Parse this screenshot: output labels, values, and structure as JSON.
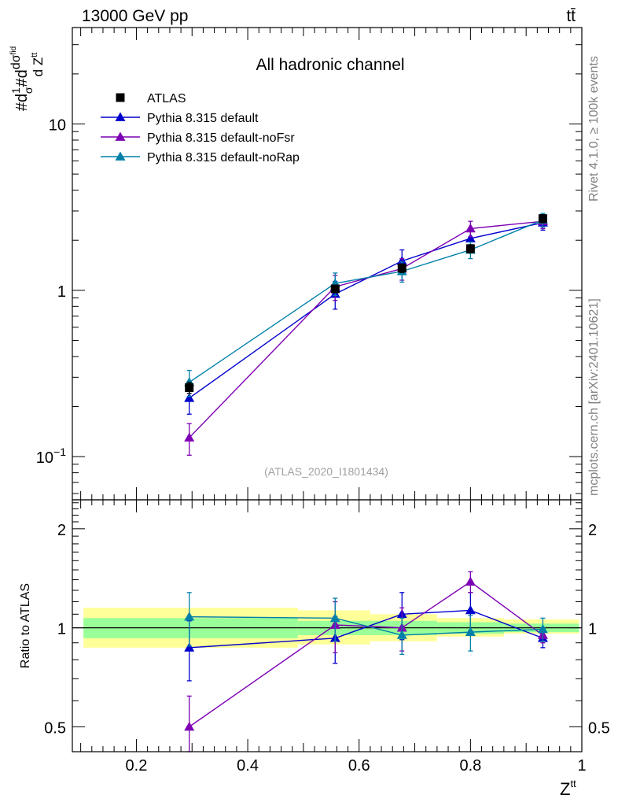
{
  "header": {
    "left": "13000 GeV pp",
    "right": "tt̄"
  },
  "side_text": {
    "rivet": "Rivet 4.1.0, ≥ 100k events",
    "mcplots": "mcplots.cern.ch [arXiv:2401.10621]"
  },
  "colors": {
    "atlas": "#000000",
    "default": "#0000cc",
    "noFsr": "#7d00b4",
    "noRap": "#0080a8",
    "band_inner": "#99ff99",
    "band_outer": "#ffff99"
  },
  "chart_data": [
    {
      "type": "scatter",
      "title": "All hadronic channel",
      "analysis": "(ATLAS_2020_I1801434)",
      "ylabel_parts": {
        "a": "#d",
        "b": "1",
        "c": "σ",
        "d": "#d",
        "e": "dσ",
        "f": "fid",
        "g": "d Z",
        "h": "tt"
      },
      "yscale": "log",
      "ylim": [
        0.055,
        38
      ],
      "xlim": [
        0.085,
        1.0
      ],
      "ytick_labels": [
        {
          "v": 0.1,
          "base": "10",
          "exp": "−1"
        },
        {
          "v": 1,
          "base": "1",
          "exp": ""
        },
        {
          "v": 10,
          "base": "10",
          "exp": ""
        }
      ],
      "legend_position": "top-left",
      "series": [
        {
          "name": "ATLAS",
          "key": "atlas",
          "marker": "square",
          "x": [
            0.295,
            0.557,
            0.677,
            0.8,
            0.93
          ],
          "y": [
            0.26,
            1.02,
            1.36,
            1.78,
            2.7
          ],
          "err": [
            0.02,
            0.05,
            0.08,
            0.1,
            0.15
          ]
        },
        {
          "name": "Pythia 8.315 default",
          "key": "default",
          "marker": "triangle",
          "x": [
            0.295,
            0.557,
            0.677,
            0.8,
            0.93
          ],
          "y": [
            0.225,
            0.95,
            1.5,
            2.05,
            2.55
          ],
          "err": [
            0.045,
            0.18,
            0.25,
            0.2,
            0.25
          ]
        },
        {
          "name": "Pythia 8.315 default-noFsr",
          "key": "noFsr",
          "marker": "triangle",
          "x": [
            0.295,
            0.557,
            0.677,
            0.8,
            0.93
          ],
          "y": [
            0.13,
            1.05,
            1.35,
            2.35,
            2.6
          ],
          "err": [
            0.028,
            0.18,
            0.2,
            0.25,
            0.25
          ]
        },
        {
          "name": "Pythia 8.315 default-noRap",
          "key": "noRap",
          "marker": "triangle",
          "x": [
            0.295,
            0.557,
            0.677,
            0.8,
            0.93
          ],
          "y": [
            0.28,
            1.1,
            1.3,
            1.75,
            2.65
          ],
          "err": [
            0.05,
            0.17,
            0.18,
            0.2,
            0.25
          ]
        }
      ]
    },
    {
      "type": "scatter",
      "ylabel": "Ratio to ATLAS",
      "xlabel_parts": {
        "base": "Z",
        "sup": "tt"
      },
      "ylim": [
        0.42,
        2.45
      ],
      "xlim": [
        0.085,
        1.0
      ],
      "ytick_labels": [
        {
          "v": 0.5,
          "label": "0.5"
        },
        {
          "v": 1,
          "label": "1"
        },
        {
          "v": 2,
          "label": "2"
        }
      ],
      "xtick_labels": [
        {
          "v": 0.2,
          "label": "0.2"
        },
        {
          "v": 0.4,
          "label": "0.4"
        },
        {
          "v": 0.6,
          "label": "0.6"
        },
        {
          "v": 0.8,
          "label": "0.8"
        },
        {
          "v": 1.0,
          "label": "1"
        }
      ],
      "reference_line": 1.0,
      "bands": [
        {
          "x0": 0.105,
          "x1": 0.49,
          "inner": [
            0.93,
            1.07
          ],
          "outer": [
            0.87,
            1.15
          ]
        },
        {
          "x0": 0.49,
          "x1": 0.62,
          "inner": [
            0.95,
            1.05
          ],
          "outer": [
            0.89,
            1.13
          ]
        },
        {
          "x0": 0.62,
          "x1": 0.74,
          "inner": [
            0.95,
            1.05
          ],
          "outer": [
            0.91,
            1.1
          ]
        },
        {
          "x0": 0.74,
          "x1": 0.86,
          "inner": [
            0.96,
            1.04
          ],
          "outer": [
            0.94,
            1.07
          ]
        },
        {
          "x0": 0.86,
          "x1": 0.995,
          "inner": [
            0.97,
            1.03
          ],
          "outer": [
            0.96,
            1.06
          ]
        }
      ],
      "series": [
        {
          "name": "Pythia 8.315 default",
          "key": "default",
          "x": [
            0.295,
            0.557,
            0.677,
            0.8,
            0.93
          ],
          "y": [
            0.87,
            0.93,
            1.1,
            1.13,
            0.93
          ],
          "err": [
            0.18,
            0.15,
            0.18,
            0.15,
            0.06
          ]
        },
        {
          "name": "Pythia 8.315 default-noFsr",
          "key": "noFsr",
          "x": [
            0.295,
            0.557,
            0.677,
            0.8,
            0.93
          ],
          "y": [
            0.5,
            1.02,
            1.0,
            1.38,
            0.95
          ],
          "err": [
            0.12,
            0.18,
            0.15,
            0.1,
            0.05
          ]
        },
        {
          "name": "Pythia 8.315 default-noRap",
          "key": "noRap",
          "x": [
            0.295,
            0.557,
            0.677,
            0.8,
            0.93
          ],
          "y": [
            1.08,
            1.07,
            0.95,
            0.97,
            0.99
          ],
          "err": [
            0.2,
            0.16,
            0.12,
            0.12,
            0.08
          ]
        }
      ]
    }
  ]
}
